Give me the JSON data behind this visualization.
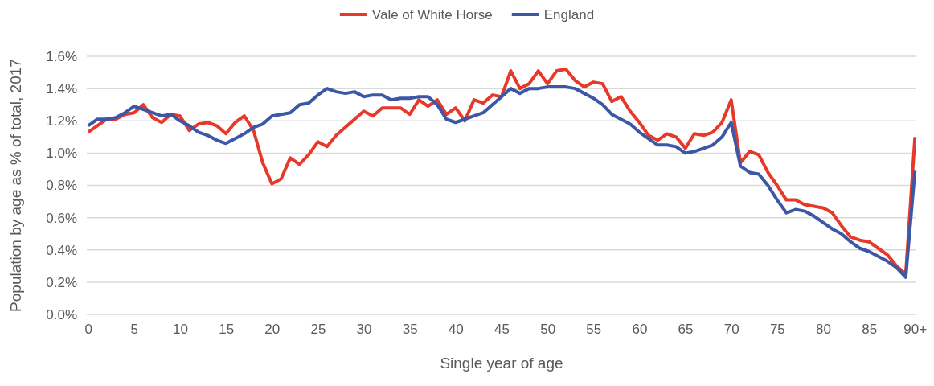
{
  "chart_data": {
    "type": "line",
    "xlabel": "Single year of age",
    "ylabel": "Population by age as % of total, 2017",
    "categories": [
      "0",
      null,
      null,
      null,
      null,
      "5",
      null,
      null,
      null,
      null,
      "10",
      null,
      null,
      null,
      null,
      "15",
      null,
      null,
      null,
      null,
      "20",
      null,
      null,
      null,
      null,
      "25",
      null,
      null,
      null,
      null,
      "30",
      null,
      null,
      null,
      null,
      "35",
      null,
      null,
      null,
      null,
      "40",
      null,
      null,
      null,
      null,
      "45",
      null,
      null,
      null,
      null,
      "50",
      null,
      null,
      null,
      null,
      "55",
      null,
      null,
      null,
      null,
      "60",
      null,
      null,
      null,
      null,
      "65",
      null,
      null,
      null,
      null,
      "70",
      null,
      null,
      null,
      null,
      "75",
      null,
      null,
      null,
      null,
      "80",
      null,
      null,
      null,
      null,
      "85",
      null,
      null,
      null,
      null,
      "90+"
    ],
    "series": [
      {
        "name": "Vale of White Horse",
        "color": "#e8382a",
        "values": [
          1.13,
          1.17,
          1.21,
          1.21,
          1.24,
          1.25,
          1.3,
          1.22,
          1.19,
          1.24,
          1.23,
          1.14,
          1.18,
          1.19,
          1.17,
          1.12,
          1.19,
          1.23,
          1.14,
          0.94,
          0.81,
          0.84,
          0.97,
          0.93,
          0.99,
          1.07,
          1.04,
          1.11,
          1.16,
          1.21,
          1.26,
          1.23,
          1.28,
          1.28,
          1.28,
          1.24,
          1.33,
          1.29,
          1.33,
          1.24,
          1.28,
          1.2,
          1.33,
          1.31,
          1.36,
          1.35,
          1.51,
          1.4,
          1.43,
          1.51,
          1.43,
          1.51,
          1.52,
          1.45,
          1.41,
          1.44,
          1.43,
          1.32,
          1.35,
          1.26,
          1.19,
          1.11,
          1.08,
          1.12,
          1.1,
          1.03,
          1.12,
          1.11,
          1.13,
          1.19,
          1.33,
          0.94,
          1.01,
          0.99,
          0.88,
          0.8,
          0.71,
          0.71,
          0.68,
          0.67,
          0.66,
          0.63,
          0.55,
          0.48,
          0.46,
          0.45,
          0.41,
          0.37,
          0.3,
          0.25,
          1.1
        ]
      },
      {
        "name": "England",
        "color": "#3b57a6",
        "values": [
          1.17,
          1.21,
          1.21,
          1.22,
          1.25,
          1.29,
          1.27,
          1.25,
          1.23,
          1.24,
          1.2,
          1.17,
          1.13,
          1.11,
          1.08,
          1.06,
          1.09,
          1.12,
          1.16,
          1.18,
          1.23,
          1.24,
          1.25,
          1.3,
          1.31,
          1.36,
          1.4,
          1.38,
          1.37,
          1.38,
          1.35,
          1.36,
          1.36,
          1.33,
          1.34,
          1.34,
          1.35,
          1.35,
          1.3,
          1.21,
          1.19,
          1.21,
          1.23,
          1.25,
          1.3,
          1.35,
          1.4,
          1.37,
          1.4,
          1.4,
          1.41,
          1.41,
          1.41,
          1.4,
          1.37,
          1.34,
          1.3,
          1.24,
          1.21,
          1.18,
          1.13,
          1.09,
          1.05,
          1.05,
          1.04,
          1.0,
          1.01,
          1.03,
          1.05,
          1.1,
          1.19,
          0.92,
          0.88,
          0.87,
          0.8,
          0.71,
          0.63,
          0.65,
          0.64,
          0.61,
          0.57,
          0.53,
          0.5,
          0.45,
          0.41,
          0.39,
          0.36,
          0.33,
          0.29,
          0.23,
          0.89
        ]
      }
    ],
    "ylim": [
      0,
      1.6
    ],
    "yticks": [
      {
        "value": 0,
        "label": "0.0%"
      },
      {
        "value": 0.2,
        "label": "0.2%"
      },
      {
        "value": 0.4,
        "label": "0.4%"
      },
      {
        "value": 0.6,
        "label": "0.6%"
      },
      {
        "value": 0.8,
        "label": "0.8%"
      },
      {
        "value": 1.0,
        "label": "1.0%"
      },
      {
        "value": 1.2,
        "label": "1.2%"
      },
      {
        "value": 1.4,
        "label": "1.4%"
      },
      {
        "value": 1.6,
        "label": "1.6%"
      }
    ],
    "grid": "y",
    "legend": "top",
    "marker": "none",
    "line_style": "solid"
  }
}
